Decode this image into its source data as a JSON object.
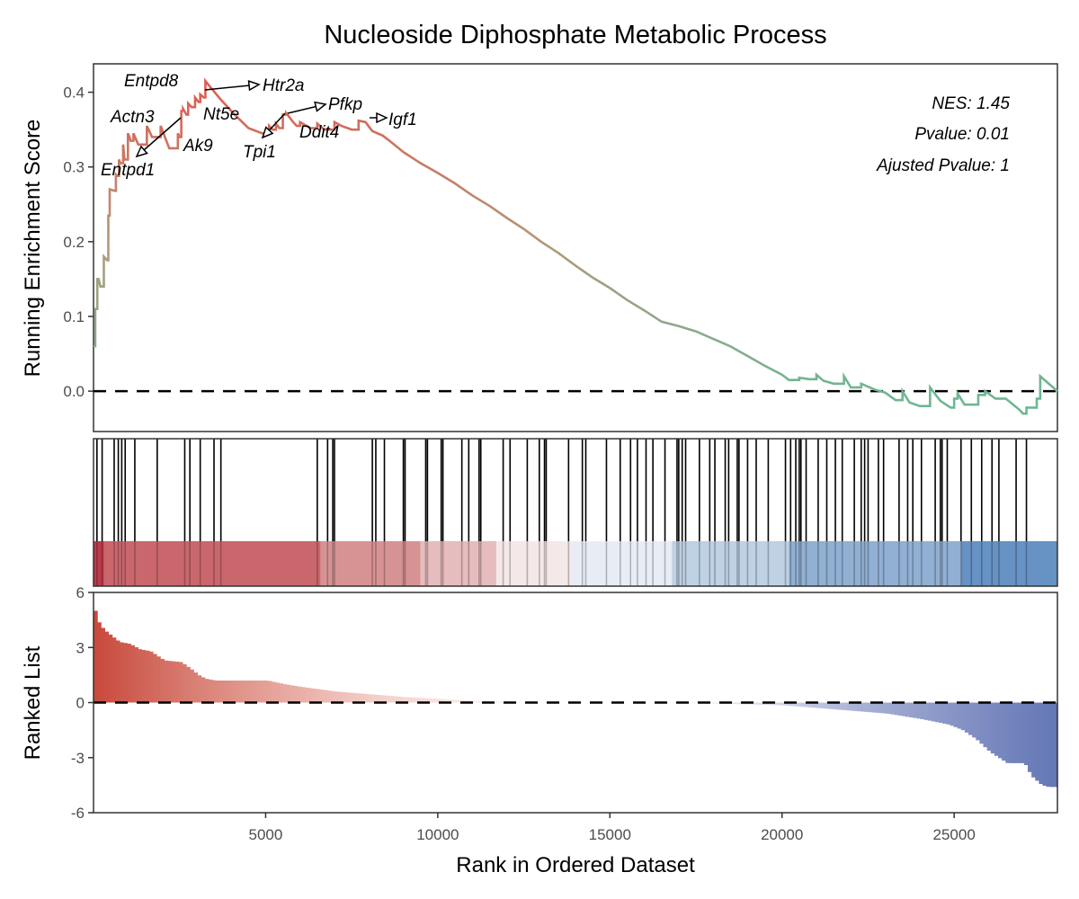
{
  "chart_data": {
    "type": "line",
    "title": "Nucleoside Diphosphate Metabolic Process",
    "xlabel": "Rank in Ordered Dataset",
    "xlim": [
      0,
      28000
    ],
    "x_ticks": [
      5000,
      10000,
      15000,
      20000,
      25000
    ],
    "x_tick_labels": [
      "5000",
      "10000",
      "15000",
      "20000",
      "25000"
    ],
    "panels": [
      {
        "name": "running-enrichment-score",
        "type": "line",
        "ylabel": "Running Enrichment Score",
        "ylim": [
          -0.054,
          0.438
        ],
        "y_ticks": [
          0.0,
          0.1,
          0.2,
          0.3,
          0.4
        ],
        "y_tick_labels": [
          "0.0",
          "0.1",
          "0.2",
          "0.3",
          "0.4"
        ],
        "reference_line": 0.0,
        "color_low": "#6fb694",
        "color_high": "#e05a4f",
        "series": [
          {
            "name": "Running ES",
            "x": [
              0,
              50,
              80,
              110,
              150,
              200,
              300,
              400,
              430,
              470,
              620,
              650,
              700,
              740,
              780,
              860,
              900,
              1000,
              1030,
              1080,
              1160,
              1300,
              1550,
              1700,
              1950,
              2200,
              2450,
              2500,
              2550,
              2600,
              2700,
              2750,
              2850,
              2950,
              3050,
              3100,
              3200,
              3250,
              3300,
              3700,
              4100,
              4500,
              4900,
              5100,
              5200,
              5300,
              5400,
              5500,
              5600,
              5800,
              5900,
              6000,
              6300,
              6500,
              6700,
              7000,
              7200,
              7500,
              7700,
              7900,
              8100,
              8400,
              8600,
              9000,
              9500,
              10000,
              10500,
              11000,
              11500,
              12000,
              12500,
              13000,
              13500,
              14000,
              14500,
              15000,
              15500,
              16000,
              16500,
              17000,
              17500,
              18000,
              18500,
              19000,
              19500,
              20000,
              20200,
              20500,
              20800,
              21000,
              21200,
              21500,
              21800,
              22000,
              22300,
              22700,
              23000,
              23300,
              23500,
              23700,
              24000,
              24300,
              24600,
              24900,
              25000,
              25100,
              25300,
              25600,
              25700,
              25900,
              26200,
              26500,
              26900,
              27000,
              27100,
              27400,
              27500,
              28000
            ],
            "values": [
              0.06,
              0.11,
              0.11,
              0.15,
              0.15,
              0.14,
              0.18,
              0.175,
              0.235,
              0.27,
              0.268,
              0.29,
              0.288,
              0.31,
              0.305,
              0.33,
              0.31,
              0.345,
              0.342,
              0.335,
              0.345,
              0.33,
              0.355,
              0.34,
              0.355,
              0.325,
              0.345,
              0.34,
              0.375,
              0.378,
              0.37,
              0.385,
              0.38,
              0.393,
              0.387,
              0.397,
              0.393,
              0.415,
              0.412,
              0.39,
              0.37,
              0.352,
              0.345,
              0.355,
              0.35,
              0.358,
              0.352,
              0.37,
              0.372,
              0.36,
              0.355,
              0.36,
              0.352,
              0.358,
              0.35,
              0.36,
              0.355,
              0.35,
              0.362,
              0.36,
              0.348,
              0.342,
              0.335,
              0.32,
              0.305,
              0.292,
              0.278,
              0.262,
              0.248,
              0.232,
              0.217,
              0.2,
              0.185,
              0.168,
              0.152,
              0.138,
              0.122,
              0.108,
              0.093,
              0.087,
              0.08,
              0.07,
              0.06,
              0.047,
              0.034,
              0.022,
              0.015,
              0.018,
              0.016,
              0.022,
              0.014,
              0.01,
              0.02,
              0.005,
              0.01,
              0.002,
              -0.002,
              -0.012,
              0.0,
              -0.015,
              -0.02,
              0.005,
              -0.013,
              -0.022,
              -0.01,
              -0.003,
              -0.018,
              -0.018,
              -0.005,
              0.0,
              -0.01,
              -0.01,
              -0.025,
              -0.03,
              -0.022,
              -0.01,
              0.02,
              0.0
            ]
          }
        ],
        "annotations": [
          {
            "gene": "Entpd8",
            "x": 3300,
            "y": 0.415
          },
          {
            "gene": "Htr2a",
            "x": 3300,
            "y": 0.415
          },
          {
            "gene": "Actn3",
            "x": 2600,
            "y": 0.378
          },
          {
            "gene": "Entpd1",
            "x": 2600,
            "y": 0.378
          },
          {
            "gene": "Nt5e",
            "x": 3050,
            "y": 0.393
          },
          {
            "gene": "Ak9",
            "x": 2450,
            "y": 0.325
          },
          {
            "gene": "Tpi1",
            "x": 5600,
            "y": 0.372
          },
          {
            "gene": "Pfkp",
            "x": 5600,
            "y": 0.372
          },
          {
            "gene": "Ddit4",
            "x": 6300,
            "y": 0.352
          },
          {
            "gene": "Igf1",
            "x": 7900,
            "y": 0.36
          }
        ],
        "stats": {
          "nes": "NES: 1.45",
          "pvalue": "Pvalue: 0.01",
          "adjusted_pvalue": "Ajusted Pvalue: 1"
        }
      },
      {
        "name": "gene-hits",
        "type": "rug",
        "hit_positions": [
          100,
          250,
          600,
          720,
          820,
          920,
          1200,
          1850,
          2650,
          2800,
          3100,
          3500,
          3700,
          6500,
          6800,
          6950,
          7000,
          8100,
          8200,
          8450,
          9000,
          9050,
          9650,
          9700,
          10100,
          10150,
          10700,
          10900,
          11200,
          11250,
          11900,
          12100,
          12600,
          12950,
          13100,
          13150,
          13800,
          14200,
          14300,
          14900,
          15300,
          15600,
          15800,
          16050,
          16250,
          16600,
          16950,
          17000,
          17100,
          17200,
          17600,
          17900,
          18050,
          18350,
          18450,
          18700,
          18750,
          19000,
          19250,
          19600,
          20100,
          20250,
          20400,
          20500,
          20550,
          20700,
          21050,
          21300,
          21550,
          21750,
          22100,
          22300,
          22400,
          22500,
          22800,
          22950,
          23400,
          23650,
          23800,
          24050,
          24450,
          24600,
          24650,
          24800,
          25200,
          25500,
          25800,
          26100,
          26300,
          26800,
          27100
        ],
        "band_colors": [
          "#b2182b",
          "#c9676d",
          "#d79394",
          "#e7bcbe",
          "#f5e8e9",
          "#e8edf5",
          "#bfd1e5",
          "#91b0d3",
          "#6692c4"
        ],
        "band_breaks": [
          0,
          300,
          6600,
          9500,
          11700,
          13900,
          16800,
          20200,
          25200,
          28000
        ]
      },
      {
        "name": "ranked-list",
        "type": "area",
        "ylabel": "Ranked List",
        "ylim": [
          -6,
          6
        ],
        "y_ticks": [
          6,
          3,
          0,
          -3,
          -6
        ],
        "y_tick_labels": [
          "6",
          "3",
          "0",
          "-3",
          "-6"
        ],
        "reference_line": 0,
        "color_pos": "#c94a3d",
        "color_neg": "#5a73b3",
        "x": [
          0,
          50,
          150,
          300,
          500,
          700,
          1000,
          1300,
          1600,
          2000,
          2500,
          2800,
          3000,
          3200,
          3500,
          4000,
          5000,
          5500,
          6000,
          7000,
          8000,
          9000,
          10000,
          11000,
          12000,
          14000,
          16000,
          18000,
          20000,
          21000,
          22000,
          23000,
          24000,
          24800,
          25200,
          25600,
          26000,
          26500,
          27000,
          27200,
          27500,
          27700,
          28000
        ],
        "values": [
          5.0,
          4.6,
          4.2,
          3.9,
          3.6,
          3.3,
          3.2,
          2.9,
          2.8,
          2.3,
          2.2,
          1.8,
          1.5,
          1.3,
          1.2,
          1.2,
          1.2,
          1.0,
          0.85,
          0.6,
          0.45,
          0.3,
          0.2,
          0.1,
          0.05,
          0.02,
          0.0,
          -0.05,
          -0.15,
          -0.3,
          -0.45,
          -0.6,
          -0.9,
          -1.2,
          -1.5,
          -2.0,
          -2.7,
          -3.3,
          -3.3,
          -4.0,
          -4.5,
          -4.6,
          -4.6
        ],
        "gradient_stops": [
          "#c94a3d",
          "#d87e73",
          "#e8aaa1",
          "#f4d2cc",
          "#f9ebe8",
          "#ffffff",
          "#eef0f7",
          "#d7dbeb",
          "#a7b0d4",
          "#8592c4",
          "#6478b6"
        ]
      }
    ]
  }
}
